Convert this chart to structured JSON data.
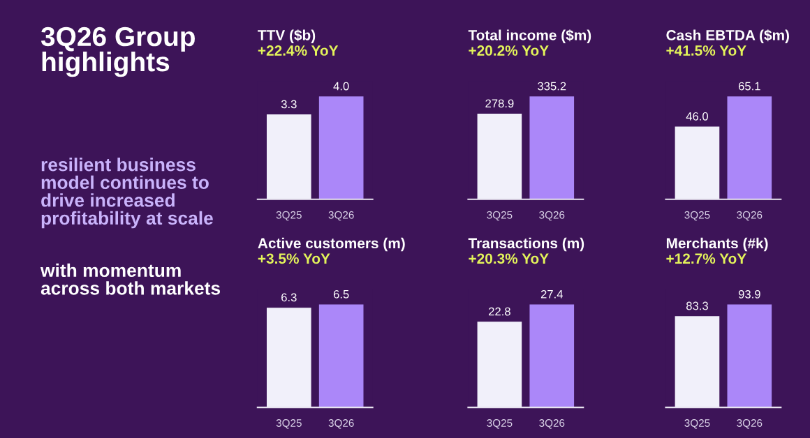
{
  "chart_data": [
    {
      "type": "other",
      "title": "3Q26 Group highlights",
      "annotations": [
        "resilient business model continues to drive increased profitability at scale",
        "with momentum across both markets"
      ]
    },
    {
      "type": "bar",
      "title": "TTV ($b)",
      "subtitle": "+22.4% YoY",
      "categories": [
        "3Q25",
        "3Q26"
      ],
      "values": [
        3.3,
        4.0
      ],
      "value_labels": [
        "3.3",
        "4.0"
      ],
      "colors": [
        "#f1f0fa",
        "#ab87f9"
      ]
    },
    {
      "type": "bar",
      "title": "Total income ($m)",
      "subtitle": "+20.2% YoY",
      "categories": [
        "3Q25",
        "3Q26"
      ],
      "values": [
        278.9,
        335.2
      ],
      "colors": [
        "#f1f0fa",
        "#ab87f9"
      ],
      "data_labels": true
    },
    {
      "type": "bar",
      "title": "Cash EBTDA ($m)",
      "subtitle": "+41.5% YoY",
      "categories": [
        "3Q25",
        "3Q26"
      ],
      "values": [
        46.0,
        65.1
      ],
      "value_labels": [
        "46.0",
        "65.1"
      ],
      "colors": [
        "#f1f0fa",
        "#ab87f9"
      ]
    },
    {
      "type": "bar",
      "title": "Active customers (m)",
      "subtitle": "+3.5% YoY",
      "categories": [
        "3Q25",
        "3Q26"
      ],
      "values": [
        6.3,
        6.5
      ],
      "colors": [
        "#f1f0fa",
        "#ab87f9"
      ],
      "data_labels": true
    },
    {
      "type": "bar",
      "title": "Transactions (m)",
      "subtitle": "+20.3% YoY",
      "categories": [
        "3Q25",
        "3Q26"
      ],
      "values": [
        22.8,
        27.4
      ],
      "colors": [
        "#f1f0fa",
        "#ab87f9"
      ],
      "data_labels": true
    },
    {
      "type": "bar",
      "title": "Merchants (#k)",
      "subtitle": "+12.7% YoY",
      "categories": [
        "3Q25",
        "3Q26"
      ],
      "values": [
        83.3,
        93.9
      ],
      "colors": [
        "#f1f0fa",
        "#ab87f9"
      ],
      "data_labels": true
    }
  ]
}
